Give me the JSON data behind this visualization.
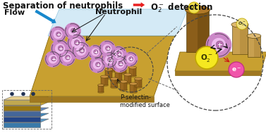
{
  "title_left": "Separation of neutrophils",
  "title_right": "O₂⁻ detection",
  "arrow_color": "#e82020",
  "flow_label": "Flow",
  "neutrophil_label": "Neutrophil",
  "p_selectin_label": "P-selectin-\nmodified surface",
  "chip_platform_color": "#c8a030",
  "chip_platform_edge": "#8a6a10",
  "chip_platform_dark": "#a07820",
  "flow_layer_color": "#b8ddf0",
  "flow_layer_edge": "#60aad0",
  "electrode_color": "#9a6820",
  "electrode_top_color": "#c89040",
  "electrode_side_color": "#7a5010",
  "neutrophil_outer": "#cc88c8",
  "neutrophil_inner": "#eebbee",
  "neutrophil_nucleus": "#b870b0",
  "o2_bubble_color": "#f5e820",
  "o2_bubble_stroke": "#c0a800",
  "e_bubble_color": "#f055aa",
  "e_bubble_stroke": "#c03080",
  "zoom_circle_color": "#444444",
  "flow_arrow_color": "#1888cc",
  "bg_color": "#ffffff",
  "side_stack_colors": [
    "#5a9ac8",
    "#4488bb",
    "#6688bb",
    "#c8a030",
    "#e8d090"
  ],
  "side_stack_darks": [
    "#3a7aaa",
    "#224488",
    "#446699",
    "#9a7810",
    "#c0a850"
  ]
}
